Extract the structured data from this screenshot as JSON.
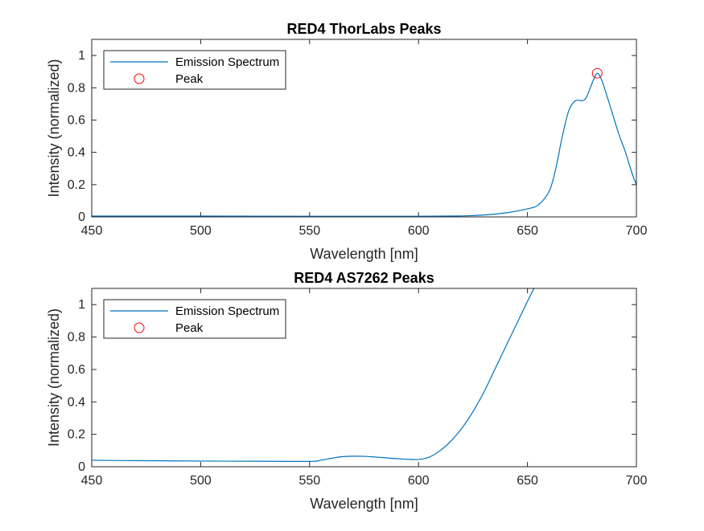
{
  "chart_data": [
    {
      "type": "line",
      "title": "RED4 ThorLabs Peaks",
      "xlabel": "Wavelength [nm]",
      "ylabel": "Intensity (normalized)",
      "xlim": [
        450,
        700
      ],
      "ylim": [
        0,
        1.1
      ],
      "xticks": [
        "450",
        "500",
        "550",
        "600",
        "650",
        "700"
      ],
      "yticks": [
        "0",
        "0.2",
        "0.4",
        "0.6",
        "0.8",
        "1"
      ],
      "legend_position": "top-left",
      "legend": [
        "Emission Spectrum",
        "Peak"
      ],
      "series": [
        {
          "name": "Emission Spectrum",
          "x": [
            450,
            500,
            550,
            600,
            620,
            630,
            640,
            650,
            655,
            660,
            663,
            666,
            669,
            672,
            675,
            677,
            680,
            682,
            684,
            686,
            689,
            692,
            695,
            698,
            700
          ],
          "y": [
            0.005,
            0.005,
            0.004,
            0.004,
            0.006,
            0.012,
            0.025,
            0.05,
            0.075,
            0.16,
            0.3,
            0.5,
            0.66,
            0.72,
            0.72,
            0.74,
            0.84,
            0.89,
            0.85,
            0.77,
            0.64,
            0.51,
            0.4,
            0.27,
            0.2
          ]
        },
        {
          "name": "Peak",
          "x": [
            682
          ],
          "y": [
            0.89
          ]
        }
      ]
    },
    {
      "type": "line",
      "title": "RED4 AS7262 Peaks",
      "xlabel": "Wavelength [nm]",
      "ylabel": "Intensity (normalized)",
      "xlim": [
        450,
        700
      ],
      "ylim": [
        0,
        1.1
      ],
      "xticks": [
        "450",
        "500",
        "550",
        "600",
        "650",
        "700"
      ],
      "yticks": [
        "0",
        "0.2",
        "0.4",
        "0.6",
        "0.8",
        "1"
      ],
      "legend_position": "top-left",
      "legend": [
        "Emission Spectrum",
        "Peak"
      ],
      "series": [
        {
          "name": "Emission Spectrum",
          "x": [
            450,
            475,
            500,
            525,
            550,
            555,
            560,
            565,
            570,
            575,
            580,
            585,
            590,
            595,
            600,
            605,
            610,
            615,
            620,
            625,
            630,
            635,
            640,
            645,
            650,
            653
          ],
          "y": [
            0.04,
            0.037,
            0.035,
            0.034,
            0.033,
            0.04,
            0.052,
            0.062,
            0.065,
            0.064,
            0.06,
            0.055,
            0.05,
            0.046,
            0.045,
            0.06,
            0.1,
            0.16,
            0.24,
            0.34,
            0.46,
            0.6,
            0.74,
            0.88,
            1.02,
            1.1
          ]
        }
      ]
    }
  ]
}
